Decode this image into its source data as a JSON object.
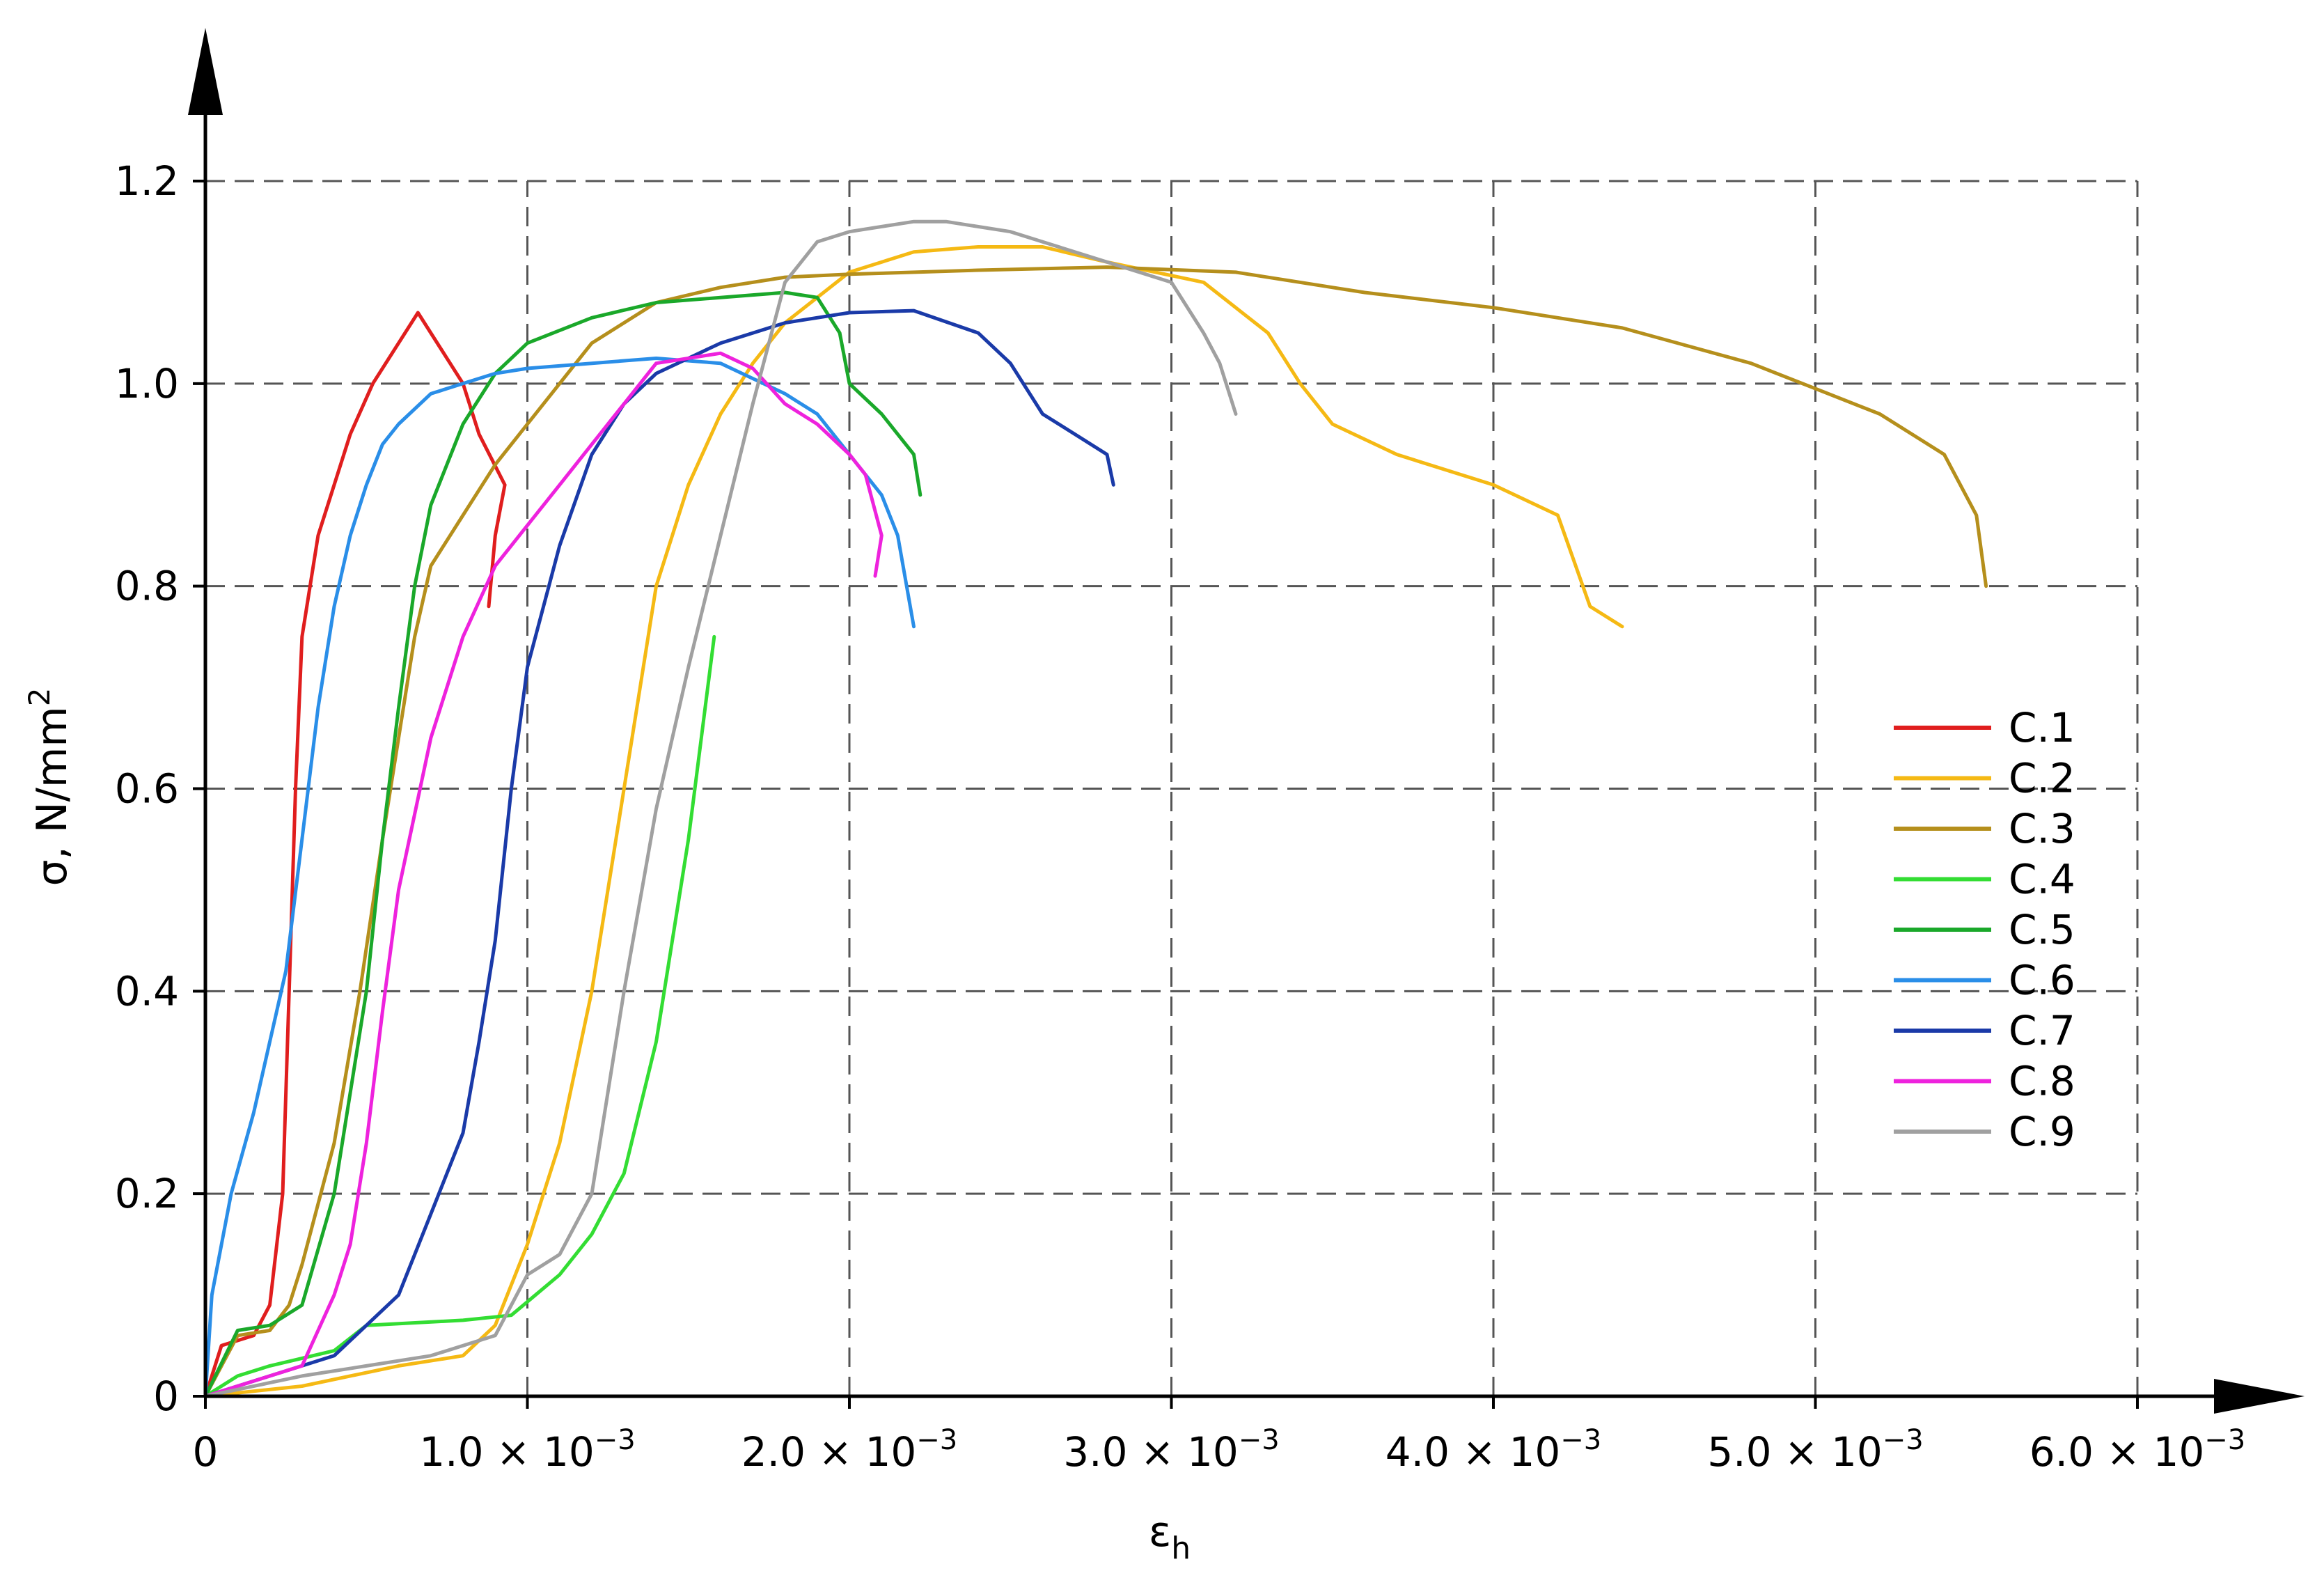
{
  "chart_data": {
    "type": "line",
    "xlabel": "ε",
    "xlabel_sub": "h",
    "ylabel": "σ, N/mm",
    "ylabel_sup": "2",
    "xlim": [
      0,
      0.006
    ],
    "ylim": [
      0,
      1.2
    ],
    "grid": true,
    "legend_position": "right",
    "x_ticks": [
      {
        "value": 0,
        "label": "0",
        "exp": ""
      },
      {
        "value": 0.001,
        "label": "1.0 × 10",
        "exp": "−3"
      },
      {
        "value": 0.002,
        "label": "2.0 × 10",
        "exp": "−3"
      },
      {
        "value": 0.003,
        "label": "3.0 × 10",
        "exp": "−3"
      },
      {
        "value": 0.004,
        "label": "4.0 × 10",
        "exp": "−3"
      },
      {
        "value": 0.005,
        "label": "5.0 × 10",
        "exp": "−3"
      },
      {
        "value": 0.006,
        "label": "6.0 × 10",
        "exp": "−3"
      }
    ],
    "y_ticks": [
      {
        "value": 0,
        "label": "0"
      },
      {
        "value": 0.2,
        "label": "0.2"
      },
      {
        "value": 0.4,
        "label": "0.4"
      },
      {
        "value": 0.6,
        "label": "0.6"
      },
      {
        "value": 0.8,
        "label": "0.8"
      },
      {
        "value": 1.0,
        "label": "1.0"
      },
      {
        "value": 1.2,
        "label": "1.2"
      }
    ],
    "series": [
      {
        "name": "C.1",
        "color": "#e01e1e",
        "points": [
          [
            0,
            0
          ],
          [
            5e-05,
            0.05
          ],
          [
            0.00015,
            0.06
          ],
          [
            0.0002,
            0.09
          ],
          [
            0.00024,
            0.2
          ],
          [
            0.00026,
            0.4
          ],
          [
            0.00028,
            0.6
          ],
          [
            0.0003,
            0.75
          ],
          [
            0.00035,
            0.85
          ],
          [
            0.0004,
            0.9
          ],
          [
            0.00045,
            0.95
          ],
          [
            0.00052,
            1.0
          ],
          [
            0.0006,
            1.04
          ],
          [
            0.00066,
            1.07
          ],
          [
            0.0007,
            1.05
          ],
          [
            0.00076,
            1.02
          ],
          [
            0.0008,
            1.0
          ],
          [
            0.00085,
            0.95
          ],
          [
            0.00093,
            0.9
          ],
          [
            0.0009,
            0.85
          ],
          [
            0.00088,
            0.78
          ]
        ]
      },
      {
        "name": "C.2",
        "color": "#f5b914",
        "points": [
          [
            0,
            0
          ],
          [
            0.0003,
            0.01
          ],
          [
            0.0006,
            0.03
          ],
          [
            0.0008,
            0.04
          ],
          [
            0.0009,
            0.07
          ],
          [
            0.001,
            0.15
          ],
          [
            0.0011,
            0.25
          ],
          [
            0.0012,
            0.4
          ],
          [
            0.0013,
            0.6
          ],
          [
            0.0014,
            0.8
          ],
          [
            0.0015,
            0.9
          ],
          [
            0.0016,
            0.97
          ],
          [
            0.0017,
            1.02
          ],
          [
            0.0018,
            1.06
          ],
          [
            0.002,
            1.11
          ],
          [
            0.0022,
            1.13
          ],
          [
            0.0024,
            1.135
          ],
          [
            0.0026,
            1.135
          ],
          [
            0.0028,
            1.12
          ],
          [
            0.0031,
            1.1
          ],
          [
            0.0033,
            1.05
          ],
          [
            0.0034,
            1.0
          ],
          [
            0.0035,
            0.96
          ],
          [
            0.0037,
            0.93
          ],
          [
            0.004,
            0.9
          ],
          [
            0.0042,
            0.87
          ],
          [
            0.0043,
            0.78
          ],
          [
            0.0044,
            0.76
          ]
        ]
      },
      {
        "name": "C.3",
        "color": "#b58f1c",
        "points": [
          [
            0,
            0
          ],
          [
            0.0001,
            0.06
          ],
          [
            0.0002,
            0.065
          ],
          [
            0.00026,
            0.09
          ],
          [
            0.0003,
            0.13
          ],
          [
            0.0004,
            0.25
          ],
          [
            0.00048,
            0.4
          ],
          [
            0.00055,
            0.55
          ],
          [
            0.0006,
            0.65
          ],
          [
            0.00065,
            0.75
          ],
          [
            0.0007,
            0.82
          ],
          [
            0.0008,
            0.87
          ],
          [
            0.0009,
            0.92
          ],
          [
            0.001,
            0.96
          ],
          [
            0.0011,
            1.0
          ],
          [
            0.0012,
            1.04
          ],
          [
            0.0014,
            1.08
          ],
          [
            0.0016,
            1.095
          ],
          [
            0.0018,
            1.105
          ],
          [
            0.002,
            1.108
          ],
          [
            0.0024,
            1.112
          ],
          [
            0.0028,
            1.115
          ],
          [
            0.0032,
            1.11
          ],
          [
            0.0036,
            1.09
          ],
          [
            0.004,
            1.075
          ],
          [
            0.0044,
            1.055
          ],
          [
            0.0048,
            1.02
          ],
          [
            0.005,
            0.995
          ],
          [
            0.0052,
            0.97
          ],
          [
            0.0054,
            0.93
          ],
          [
            0.0055,
            0.87
          ],
          [
            0.00553,
            0.8
          ]
        ]
      },
      {
        "name": "C.4",
        "color": "#33dd33",
        "points": [
          [
            0,
            0
          ],
          [
            0.0001,
            0.02
          ],
          [
            0.0002,
            0.03
          ],
          [
            0.0004,
            0.045
          ],
          [
            0.0005,
            0.07
          ],
          [
            0.0008,
            0.075
          ],
          [
            0.00095,
            0.08
          ],
          [
            0.0011,
            0.12
          ],
          [
            0.0012,
            0.16
          ],
          [
            0.0013,
            0.22
          ],
          [
            0.0014,
            0.35
          ],
          [
            0.0015,
            0.55
          ],
          [
            0.00158,
            0.75
          ]
        ]
      },
      {
        "name": "C.5",
        "color": "#1aa82a",
        "points": [
          [
            0,
            0
          ],
          [
            0.0001,
            0.065
          ],
          [
            0.0002,
            0.07
          ],
          [
            0.0003,
            0.09
          ],
          [
            0.0004,
            0.2
          ],
          [
            0.0005,
            0.4
          ],
          [
            0.00055,
            0.55
          ],
          [
            0.0006,
            0.68
          ],
          [
            0.00065,
            0.8
          ],
          [
            0.0007,
            0.88
          ],
          [
            0.0008,
            0.96
          ],
          [
            0.0009,
            1.01
          ],
          [
            0.001,
            1.04
          ],
          [
            0.0012,
            1.065
          ],
          [
            0.0014,
            1.08
          ],
          [
            0.0016,
            1.085
          ],
          [
            0.0018,
            1.09
          ],
          [
            0.0019,
            1.085
          ],
          [
            0.00197,
            1.05
          ],
          [
            0.002,
            1.0
          ],
          [
            0.0021,
            0.97
          ],
          [
            0.0022,
            0.93
          ],
          [
            0.00222,
            0.89
          ]
        ]
      },
      {
        "name": "C.6",
        "color": "#2a8ee8",
        "points": [
          [
            0,
            0
          ],
          [
            2e-05,
            0.1
          ],
          [
            8e-05,
            0.2
          ],
          [
            0.00015,
            0.28
          ],
          [
            0.0002,
            0.35
          ],
          [
            0.00025,
            0.42
          ],
          [
            0.0003,
            0.55
          ],
          [
            0.00035,
            0.68
          ],
          [
            0.0004,
            0.78
          ],
          [
            0.00045,
            0.85
          ],
          [
            0.0005,
            0.9
          ],
          [
            0.00055,
            0.94
          ],
          [
            0.0006,
            0.96
          ],
          [
            0.0007,
            0.99
          ],
          [
            0.0008,
            1.0
          ],
          [
            0.0009,
            1.01
          ],
          [
            0.001,
            1.015
          ],
          [
            0.0012,
            1.02
          ],
          [
            0.0014,
            1.025
          ],
          [
            0.0016,
            1.02
          ],
          [
            0.0018,
            0.99
          ],
          [
            0.0019,
            0.97
          ],
          [
            0.002,
            0.93
          ],
          [
            0.0021,
            0.89
          ],
          [
            0.00215,
            0.85
          ],
          [
            0.0022,
            0.76
          ]
        ]
      },
      {
        "name": "C.7",
        "color": "#1a3aa8",
        "points": [
          [
            0,
            0
          ],
          [
            0.0002,
            0.02
          ],
          [
            0.0004,
            0.04
          ],
          [
            0.0005,
            0.07
          ],
          [
            0.0006,
            0.1
          ],
          [
            0.0007,
            0.18
          ],
          [
            0.0008,
            0.26
          ],
          [
            0.00085,
            0.35
          ],
          [
            0.0009,
            0.45
          ],
          [
            0.00095,
            0.6
          ],
          [
            0.001,
            0.72
          ],
          [
            0.0011,
            0.84
          ],
          [
            0.0012,
            0.93
          ],
          [
            0.0013,
            0.98
          ],
          [
            0.0014,
            1.01
          ],
          [
            0.0016,
            1.04
          ],
          [
            0.0018,
            1.06
          ],
          [
            0.002,
            1.07
          ],
          [
            0.0022,
            1.072
          ],
          [
            0.0024,
            1.05
          ],
          [
            0.0025,
            1.02
          ],
          [
            0.0026,
            0.97
          ],
          [
            0.0027,
            0.95
          ],
          [
            0.0028,
            0.93
          ],
          [
            0.00282,
            0.9
          ]
        ]
      },
      {
        "name": "C.8",
        "color": "#ee22dd",
        "points": [
          [
            0,
            0
          ],
          [
            0.0002,
            0.02
          ],
          [
            0.0003,
            0.03
          ],
          [
            0.0004,
            0.1
          ],
          [
            0.00045,
            0.15
          ],
          [
            0.0005,
            0.25
          ],
          [
            0.00055,
            0.38
          ],
          [
            0.0006,
            0.5
          ],
          [
            0.0007,
            0.65
          ],
          [
            0.0008,
            0.75
          ],
          [
            0.0009,
            0.82
          ],
          [
            0.001,
            0.86
          ],
          [
            0.0011,
            0.9
          ],
          [
            0.0012,
            0.94
          ],
          [
            0.0013,
            0.98
          ],
          [
            0.0014,
            1.02
          ],
          [
            0.0016,
            1.03
          ],
          [
            0.0017,
            1.015
          ],
          [
            0.0018,
            0.98
          ],
          [
            0.0019,
            0.96
          ],
          [
            0.002,
            0.93
          ],
          [
            0.00205,
            0.91
          ],
          [
            0.0021,
            0.85
          ],
          [
            0.00208,
            0.81
          ]
        ]
      },
      {
        "name": "C.9",
        "color": "#a0a0a0",
        "points": [
          [
            0,
            0
          ],
          [
            0.0003,
            0.02
          ],
          [
            0.0005,
            0.03
          ],
          [
            0.0007,
            0.04
          ],
          [
            0.0009,
            0.06
          ],
          [
            0.001,
            0.12
          ],
          [
            0.0011,
            0.14
          ],
          [
            0.0012,
            0.2
          ],
          [
            0.00125,
            0.3
          ],
          [
            0.0013,
            0.4
          ],
          [
            0.0014,
            0.58
          ],
          [
            0.0015,
            0.72
          ],
          [
            0.0016,
            0.85
          ],
          [
            0.0017,
            0.98
          ],
          [
            0.0018,
            1.1
          ],
          [
            0.0019,
            1.14
          ],
          [
            0.002,
            1.15
          ],
          [
            0.0021,
            1.155
          ],
          [
            0.0022,
            1.16
          ],
          [
            0.0023,
            1.16
          ],
          [
            0.0025,
            1.15
          ],
          [
            0.0026,
            1.14
          ],
          [
            0.0028,
            1.12
          ],
          [
            0.003,
            1.1
          ],
          [
            0.0031,
            1.05
          ],
          [
            0.00315,
            1.02
          ],
          [
            0.0032,
            0.97
          ]
        ]
      }
    ]
  }
}
